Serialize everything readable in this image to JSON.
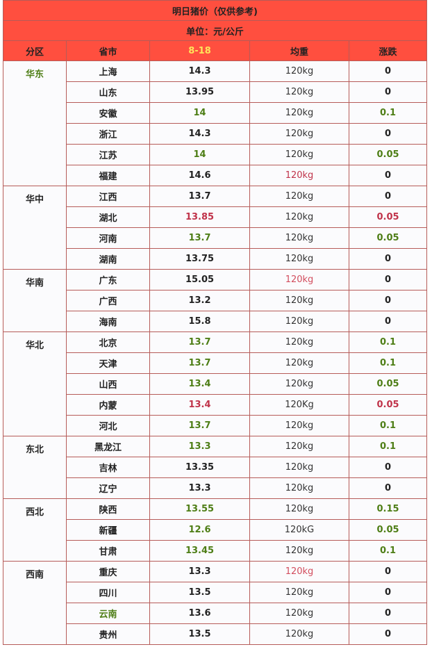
{
  "title": "明日猪价（仅供参考)",
  "unit": "单位：元/公斤",
  "headers": [
    "分区",
    "省市",
    "8-18",
    "均重",
    "涨跌"
  ],
  "colors": {
    "header_bg": "#ff4f3f",
    "date_header": "#ffe45a",
    "up_green": "#4e7e16",
    "down_red": "#c0334a"
  },
  "regions": [
    {
      "name": "华东",
      "color": "green",
      "rows": [
        {
          "province": "上海",
          "price": "14.3",
          "weight": "120kg",
          "change": "0"
        },
        {
          "province": "山东",
          "price": "13.95",
          "weight": "120kg",
          "change": "0"
        },
        {
          "province": "安徽",
          "price": "14",
          "weight": "120kg",
          "change": "0.1",
          "price_color": "green",
          "change_color": "green"
        },
        {
          "province": "浙江",
          "price": "14.3",
          "weight": "120kg",
          "change": "0"
        },
        {
          "province": "江苏",
          "price": "14",
          "weight": "120kg",
          "change": "0.05",
          "price_color": "green",
          "change_color": "green"
        },
        {
          "province": "福建",
          "price": "14.6",
          "weight": "120kg",
          "change": "0",
          "weight_color": "red"
        }
      ]
    },
    {
      "name": "华中",
      "rows": [
        {
          "province": "江西",
          "price": "13.7",
          "weight": "120kg",
          "change": "0"
        },
        {
          "province": "湖北",
          "price": "13.85",
          "weight": "120kg",
          "change": "0.05",
          "price_color": "red",
          "change_color": "red"
        },
        {
          "province": "河南",
          "price": "13.7",
          "weight": "120kg",
          "change": "0.05",
          "price_color": "green",
          "change_color": "green"
        },
        {
          "province": "湖南",
          "price": "13.75",
          "weight": "120kg",
          "change": "0"
        }
      ]
    },
    {
      "name": "华南",
      "rows": [
        {
          "province": "广东",
          "price": "15.05",
          "weight": "120kg",
          "change": "0",
          "weight_color": "lightred"
        },
        {
          "province": "广西",
          "price": "13.2",
          "weight": "120kg",
          "change": "0"
        },
        {
          "province": "海南",
          "price": "15.8",
          "weight": "120kg",
          "change": "0"
        }
      ]
    },
    {
      "name": "华北",
      "rows": [
        {
          "province": "北京",
          "price": "13.7",
          "weight": "120kg",
          "change": "0.1",
          "price_color": "green",
          "change_color": "green"
        },
        {
          "province": "天津",
          "price": "13.7",
          "weight": "120kg",
          "change": "0.1",
          "price_color": "green",
          "change_color": "green"
        },
        {
          "province": "山西",
          "price": "13.4",
          "weight": "120kg",
          "change": "0.05",
          "price_color": "green",
          "change_color": "green"
        },
        {
          "province": "内蒙",
          "price": "13.4",
          "weight": "120Kg",
          "change": "0.05",
          "price_color": "red",
          "change_color": "red"
        },
        {
          "province": "河北",
          "price": "13.7",
          "weight": "120kg",
          "change": "0.1",
          "price_color": "green",
          "change_color": "green"
        }
      ]
    },
    {
      "name": "东北",
      "rows": [
        {
          "province": "黑龙江",
          "price": "13.3",
          "weight": "120kg",
          "change": "0.1",
          "price_color": "green",
          "change_color": "green"
        },
        {
          "province": "吉林",
          "price": "13.35",
          "weight": "120kg",
          "change": "0"
        },
        {
          "province": "辽宁",
          "price": "13.3",
          "weight": "120kg",
          "change": "0"
        }
      ]
    },
    {
      "name": "西北",
      "rows": [
        {
          "province": "陕西",
          "price": "13.55",
          "weight": "120kg",
          "change": "0.15",
          "price_color": "green",
          "change_color": "green"
        },
        {
          "province": "新疆",
          "price": "12.6",
          "weight": "120kG",
          "change": "0.05",
          "price_color": "green",
          "change_color": "green"
        },
        {
          "province": "甘肃",
          "price": "13.45",
          "weight": "120kg",
          "change": "0.1",
          "price_color": "green",
          "change_color": "green"
        }
      ]
    },
    {
      "name": "西南",
      "rows": [
        {
          "province": "重庆",
          "price": "13.3",
          "weight": "120kg",
          "change": "0",
          "weight_color": "lightred"
        },
        {
          "province": "四川",
          "price": "13.5",
          "weight": "120kg",
          "change": "0"
        },
        {
          "province": "云南",
          "price": "13.6",
          "weight": "120kg",
          "change": "0",
          "province_color": "green"
        },
        {
          "province": "贵州",
          "price": "13.5",
          "weight": "120kg",
          "change": "0"
        }
      ]
    }
  ]
}
